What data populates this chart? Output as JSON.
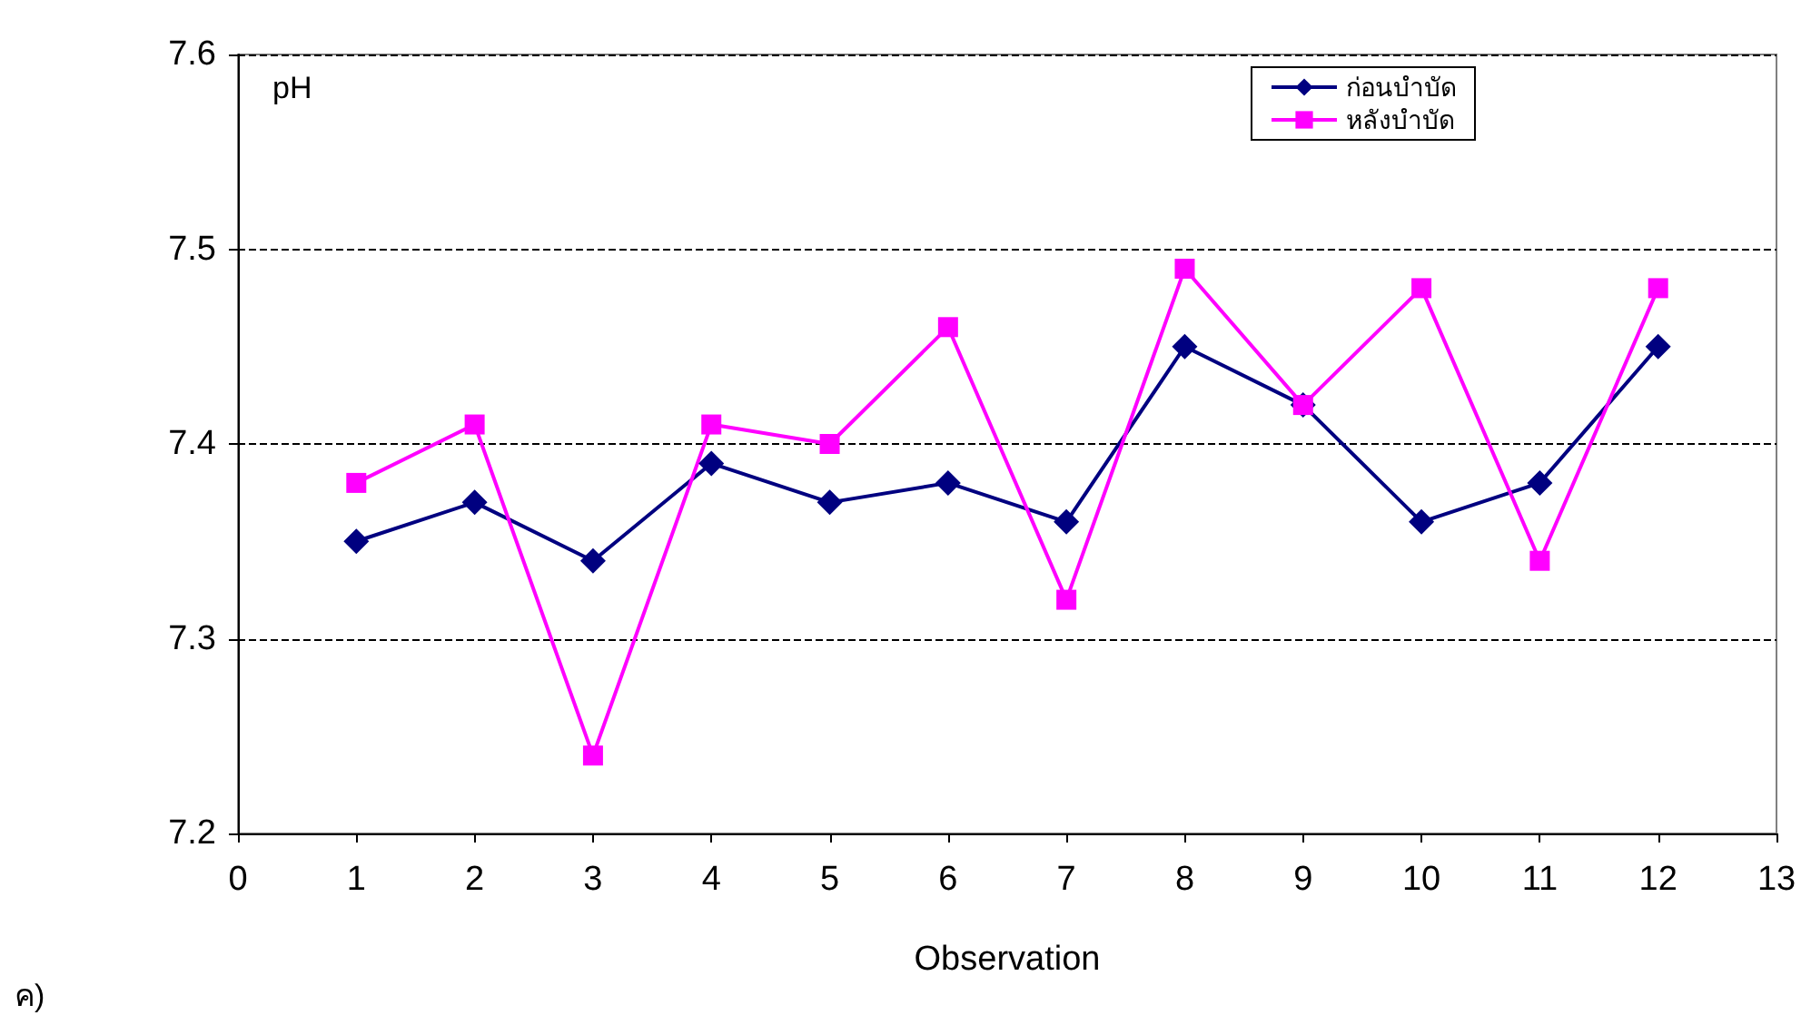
{
  "chart_data": {
    "type": "line",
    "ylabel": "pH",
    "xlabel": "Observation",
    "annotations": [
      "ค)"
    ],
    "x": [
      1,
      2,
      3,
      4,
      5,
      6,
      7,
      8,
      9,
      10,
      11,
      12
    ],
    "series": [
      {
        "name": "ก่อนบำบัด",
        "color": "#000080",
        "marker": "diamond",
        "values": [
          7.35,
          7.37,
          7.34,
          7.39,
          7.37,
          7.38,
          7.36,
          7.45,
          7.42,
          7.36,
          7.38,
          7.45
        ]
      },
      {
        "name": "หลังบำบัด",
        "color": "#ff00ff",
        "marker": "square",
        "values": [
          7.38,
          7.41,
          7.24,
          7.41,
          7.4,
          7.46,
          7.32,
          7.49,
          7.42,
          7.48,
          7.34,
          7.48
        ]
      }
    ],
    "xlim": [
      0,
      13
    ],
    "xticks": [
      0,
      1,
      2,
      3,
      4,
      5,
      6,
      7,
      8,
      9,
      10,
      11,
      12,
      13
    ],
    "ylim": [
      7.2,
      7.6
    ],
    "yticks": [
      7.2,
      7.3,
      7.4,
      7.5,
      7.6
    ],
    "grid": "y",
    "line_style": "solid",
    "legend": "top right"
  }
}
